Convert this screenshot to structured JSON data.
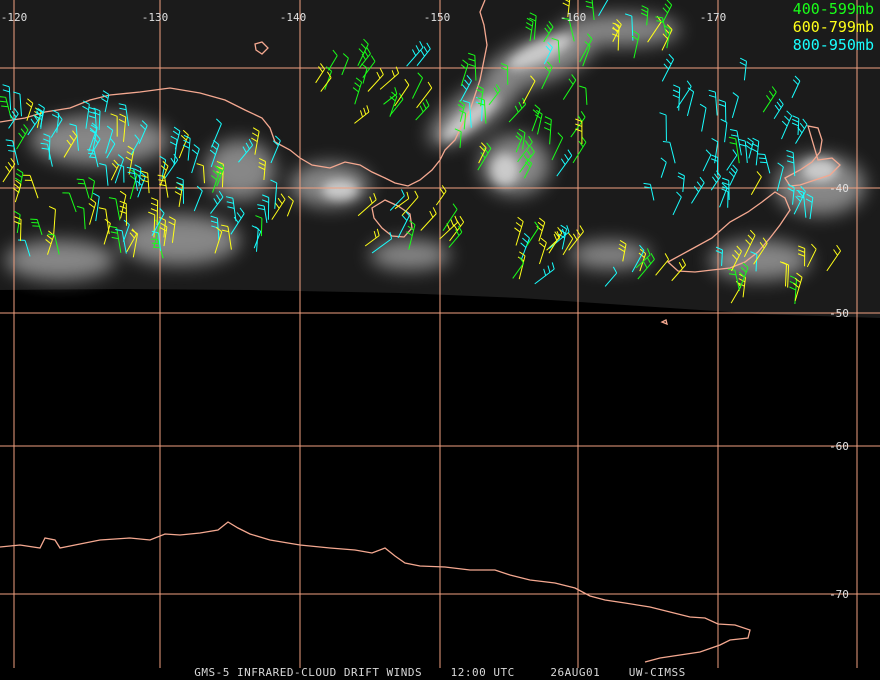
{
  "map": {
    "longitude_labels": [
      "-120",
      "-130",
      "-140",
      "-150",
      "-160",
      "-170"
    ],
    "latitude_labels": [
      "-40",
      "-50",
      "-60",
      "-70"
    ],
    "colors": {
      "grid": "#f0a080",
      "coastline": "#f4a890",
      "band_400_599": "#19ff19",
      "band_600_799": "#ffff19",
      "band_800_950": "#19ffff"
    }
  },
  "legend": {
    "items": [
      {
        "label": "400-599mb",
        "color": "#19ff19"
      },
      {
        "label": "600-799mb",
        "color": "#ffff19"
      },
      {
        "label": "800-950mb",
        "color": "#19ffff"
      }
    ]
  },
  "caption": {
    "product": "GMS-5 INFRARED-CLOUD DRIFT WINDS",
    "time": "12:00 UTC",
    "date": "26AUG01",
    "source": "UW-CIMSS"
  }
}
